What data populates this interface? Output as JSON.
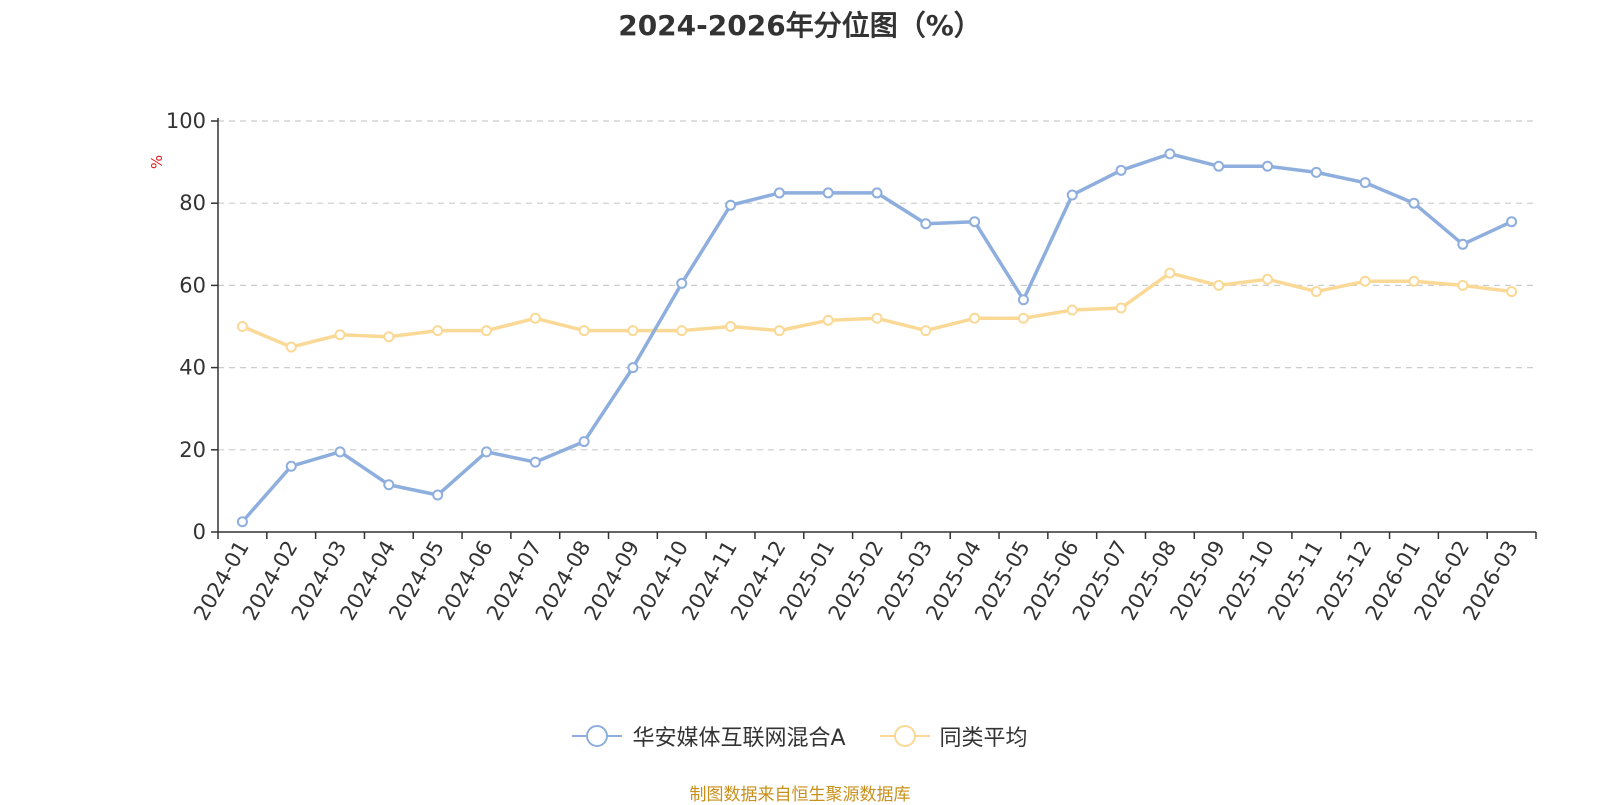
{
  "chart_data": {
    "type": "line",
    "title": "2024-2026年分位图（%）",
    "ylabel": "%",
    "xlabel": "",
    "ylim": [
      0,
      100
    ],
    "yticks": [
      0,
      20,
      40,
      60,
      80,
      100
    ],
    "grid": true,
    "legend_position": "bottom",
    "categories": [
      "2024-01",
      "2024-02",
      "2024-03",
      "2024-04",
      "2024-05",
      "2024-06",
      "2024-07",
      "2024-08",
      "2024-09",
      "2024-10",
      "2024-11",
      "2024-12",
      "2025-01",
      "2025-02",
      "2025-03",
      "2025-04",
      "2025-05",
      "2025-06",
      "2025-07",
      "2025-08",
      "2025-09",
      "2025-10",
      "2025-11",
      "2025-12",
      "2026-01",
      "2026-02",
      "2026-03"
    ],
    "series": [
      {
        "name": "华安媒体互联网混合A",
        "color": "#8eaedd",
        "values": [
          2.5,
          16,
          19.5,
          11.5,
          9,
          19.5,
          17,
          22,
          40,
          60.5,
          79.5,
          82.5,
          82.5,
          82.5,
          75,
          75.5,
          56.5,
          82,
          88,
          92,
          89,
          89,
          87.5,
          85,
          80,
          70,
          75.5
        ]
      },
      {
        "name": "同类平均",
        "color": "#fad996",
        "values": [
          50,
          45,
          48,
          47.5,
          49,
          49,
          52,
          49,
          49,
          49,
          50,
          49,
          51.5,
          52,
          49,
          52,
          52,
          54,
          54.5,
          63,
          60,
          61.5,
          58.5,
          61,
          61,
          60,
          58.5
        ]
      }
    ]
  },
  "footer": {
    "source": "制图数据来自恒生聚源数据库"
  }
}
